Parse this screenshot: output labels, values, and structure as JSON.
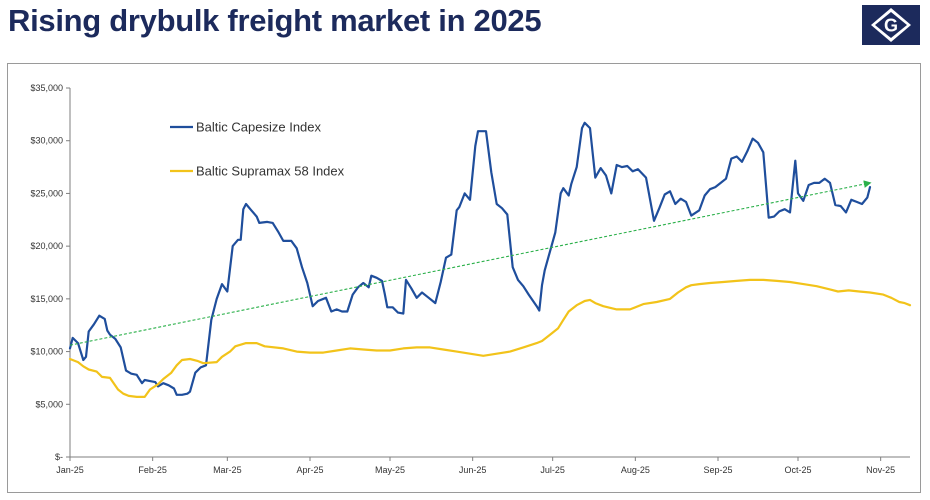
{
  "header": {
    "title": "Rising drybulk freight market in 2025",
    "logo_letter": "G",
    "logo_color": "#1c2a5c"
  },
  "chart_data": {
    "type": "line",
    "xlabel": "",
    "ylabel": "",
    "ylim": [
      0,
      35000
    ],
    "yticks": [
      0,
      5000,
      10000,
      15000,
      20000,
      25000,
      30000,
      35000
    ],
    "ytick_labels": [
      "$-",
      "$5,000",
      "$10,000",
      "$15,000",
      "$20,000",
      "$25,000",
      "$30,000",
      "$35,000"
    ],
    "x_unit": "days since Jan 1, 2025",
    "xlim": [
      0,
      315
    ],
    "xticks": [
      0,
      31,
      59,
      90,
      120,
      151,
      181,
      212,
      243,
      273,
      304
    ],
    "xtick_labels": [
      "Jan-25",
      "Feb-25",
      "Mar-25",
      "Apr-25",
      "May-25",
      "Jun-25",
      "Jul-25",
      "Aug-25",
      "Sep-25",
      "Oct-25",
      "Nov-25"
    ],
    "grid": false,
    "legend_position": "top-left",
    "series": [
      {
        "name": "Baltic Capesize Index",
        "color": "#1f4e9c",
        "points": [
          [
            0,
            10300
          ],
          [
            1,
            11300
          ],
          [
            3,
            10800
          ],
          [
            5,
            9200
          ],
          [
            6,
            9500
          ],
          [
            7,
            11900
          ],
          [
            9,
            12600
          ],
          [
            11,
            13400
          ],
          [
            13,
            13100
          ],
          [
            14,
            12000
          ],
          [
            15,
            11600
          ],
          [
            17,
            11200
          ],
          [
            19,
            10400
          ],
          [
            21,
            8200
          ],
          [
            23,
            7900
          ],
          [
            25,
            7800
          ],
          [
            27,
            7000
          ],
          [
            28,
            7300
          ],
          [
            30,
            7200
          ],
          [
            32,
            7100
          ],
          [
            33,
            6700
          ],
          [
            35,
            7000
          ],
          [
            37,
            6800
          ],
          [
            39,
            6500
          ],
          [
            40,
            5900
          ],
          [
            42,
            5900
          ],
          [
            44,
            6000
          ],
          [
            45,
            6200
          ],
          [
            47,
            8000
          ],
          [
            49,
            8500
          ],
          [
            51,
            8700
          ],
          [
            53,
            13000
          ],
          [
            55,
            15000
          ],
          [
            57,
            16400
          ],
          [
            59,
            15700
          ],
          [
            61,
            20000
          ],
          [
            63,
            20600
          ],
          [
            64,
            20600
          ],
          [
            65,
            23500
          ],
          [
            66,
            24000
          ],
          [
            68,
            23400
          ],
          [
            70,
            22800
          ],
          [
            71,
            22200
          ],
          [
            74,
            22300
          ],
          [
            76,
            22200
          ],
          [
            78,
            21400
          ],
          [
            80,
            20500
          ],
          [
            83,
            20500
          ],
          [
            85,
            19800
          ],
          [
            87,
            18000
          ],
          [
            89,
            16500
          ],
          [
            91,
            14300
          ],
          [
            93,
            14800
          ],
          [
            96,
            15100
          ],
          [
            98,
            13800
          ],
          [
            100,
            14000
          ],
          [
            102,
            13800
          ],
          [
            104,
            13800
          ],
          [
            106,
            15400
          ],
          [
            108,
            16100
          ],
          [
            110,
            16500
          ],
          [
            112,
            16100
          ],
          [
            113,
            17200
          ],
          [
            115,
            17000
          ],
          [
            117,
            16700
          ],
          [
            118,
            15500
          ],
          [
            119,
            14200
          ],
          [
            121,
            14200
          ],
          [
            123,
            13700
          ],
          [
            125,
            13600
          ],
          [
            126,
            16800
          ],
          [
            128,
            16000
          ],
          [
            130,
            15100
          ],
          [
            132,
            15600
          ],
          [
            134,
            15200
          ],
          [
            136,
            14800
          ],
          [
            137,
            14600
          ],
          [
            139,
            16600
          ],
          [
            141,
            18900
          ],
          [
            143,
            19200
          ],
          [
            145,
            23400
          ],
          [
            146,
            23700
          ],
          [
            148,
            25000
          ],
          [
            150,
            24400
          ],
          [
            152,
            29500
          ],
          [
            153,
            30900
          ],
          [
            156,
            30900
          ],
          [
            158,
            27000
          ],
          [
            160,
            24000
          ],
          [
            162,
            23600
          ],
          [
            164,
            23000
          ],
          [
            166,
            18000
          ],
          [
            168,
            16800
          ],
          [
            170,
            16200
          ],
          [
            172,
            15400
          ],
          [
            175,
            14300
          ],
          [
            176,
            13900
          ],
          [
            177,
            16300
          ],
          [
            178,
            17700
          ],
          [
            180,
            19500
          ],
          [
            182,
            21300
          ],
          [
            184,
            25000
          ],
          [
            185,
            25500
          ],
          [
            187,
            24800
          ],
          [
            188,
            25900
          ],
          [
            190,
            27500
          ],
          [
            192,
            31200
          ],
          [
            193,
            31700
          ],
          [
            195,
            31200
          ],
          [
            197,
            26500
          ],
          [
            199,
            27400
          ],
          [
            201,
            26700
          ],
          [
            203,
            25000
          ],
          [
            205,
            27700
          ],
          [
            207,
            27500
          ],
          [
            209,
            27600
          ],
          [
            211,
            27100
          ],
          [
            213,
            27300
          ],
          [
            216,
            26500
          ],
          [
            219,
            22400
          ],
          [
            221,
            23600
          ],
          [
            223,
            24900
          ],
          [
            225,
            25200
          ],
          [
            227,
            24000
          ],
          [
            229,
            24500
          ],
          [
            231,
            24200
          ],
          [
            233,
            22900
          ],
          [
            236,
            23400
          ],
          [
            238,
            24800
          ],
          [
            240,
            25400
          ],
          [
            242,
            25600
          ],
          [
            244,
            26000
          ],
          [
            246,
            26400
          ],
          [
            248,
            28300
          ],
          [
            250,
            28500
          ],
          [
            252,
            28000
          ],
          [
            254,
            29000
          ],
          [
            256,
            30200
          ],
          [
            258,
            29800
          ],
          [
            260,
            28900
          ],
          [
            262,
            22700
          ],
          [
            264,
            22800
          ],
          [
            266,
            23300
          ],
          [
            268,
            23500
          ],
          [
            270,
            23200
          ],
          [
            272,
            28100
          ],
          [
            273,
            25000
          ],
          [
            275,
            24300
          ],
          [
            277,
            25800
          ],
          [
            279,
            26000
          ],
          [
            281,
            26000
          ],
          [
            283,
            26400
          ],
          [
            285,
            26000
          ],
          [
            287,
            23900
          ],
          [
            289,
            23800
          ],
          [
            291,
            23200
          ],
          [
            293,
            24400
          ],
          [
            295,
            24200
          ],
          [
            297,
            24000
          ],
          [
            299,
            24600
          ],
          [
            300,
            25600
          ]
        ]
      },
      {
        "name": "Baltic Supramax 58 Index",
        "color": "#f2c31a",
        "points": [
          [
            0,
            9300
          ],
          [
            3,
            9000
          ],
          [
            5,
            8600
          ],
          [
            7,
            8300
          ],
          [
            10,
            8100
          ],
          [
            12,
            7600
          ],
          [
            15,
            7500
          ],
          [
            18,
            6400
          ],
          [
            20,
            6000
          ],
          [
            22,
            5800
          ],
          [
            25,
            5700
          ],
          [
            28,
            5700
          ],
          [
            30,
            6400
          ],
          [
            33,
            6900
          ],
          [
            35,
            7400
          ],
          [
            38,
            8000
          ],
          [
            40,
            8700
          ],
          [
            42,
            9200
          ],
          [
            45,
            9300
          ],
          [
            48,
            9100
          ],
          [
            50,
            8900
          ],
          [
            55,
            9000
          ],
          [
            57,
            9500
          ],
          [
            60,
            10000
          ],
          [
            62,
            10500
          ],
          [
            66,
            10800
          ],
          [
            70,
            10800
          ],
          [
            73,
            10500
          ],
          [
            80,
            10300
          ],
          [
            85,
            10000
          ],
          [
            90,
            9900
          ],
          [
            95,
            9900
          ],
          [
            100,
            10100
          ],
          [
            105,
            10300
          ],
          [
            110,
            10200
          ],
          [
            115,
            10100
          ],
          [
            120,
            10100
          ],
          [
            125,
            10300
          ],
          [
            130,
            10400
          ],
          [
            135,
            10400
          ],
          [
            140,
            10200
          ],
          [
            145,
            10000
          ],
          [
            150,
            9800
          ],
          [
            155,
            9600
          ],
          [
            160,
            9800
          ],
          [
            165,
            10000
          ],
          [
            170,
            10400
          ],
          [
            175,
            10800
          ],
          [
            177,
            11000
          ],
          [
            180,
            11600
          ],
          [
            183,
            12200
          ],
          [
            185,
            13000
          ],
          [
            187,
            13800
          ],
          [
            190,
            14400
          ],
          [
            193,
            14800
          ],
          [
            195,
            14900
          ],
          [
            197,
            14600
          ],
          [
            200,
            14300
          ],
          [
            205,
            14000
          ],
          [
            210,
            14000
          ],
          [
            215,
            14500
          ],
          [
            220,
            14700
          ],
          [
            225,
            15000
          ],
          [
            228,
            15600
          ],
          [
            231,
            16100
          ],
          [
            233,
            16300
          ],
          [
            236,
            16400
          ],
          [
            240,
            16500
          ],
          [
            245,
            16600
          ],
          [
            250,
            16700
          ],
          [
            255,
            16800
          ],
          [
            260,
            16800
          ],
          [
            265,
            16700
          ],
          [
            270,
            16600
          ],
          [
            275,
            16400
          ],
          [
            280,
            16200
          ],
          [
            285,
            15900
          ],
          [
            288,
            15700
          ],
          [
            292,
            15800
          ],
          [
            296,
            15700
          ],
          [
            300,
            15600
          ],
          [
            305,
            15400
          ],
          [
            308,
            15100
          ],
          [
            311,
            14700
          ],
          [
            313,
            14600
          ],
          [
            315,
            14400
          ]
        ]
      },
      {
        "name": "",
        "color": "#2bb04a",
        "style": "dashed-trend-arrow",
        "points": [
          [
            0,
            10600
          ],
          [
            300,
            26000
          ]
        ]
      }
    ]
  }
}
